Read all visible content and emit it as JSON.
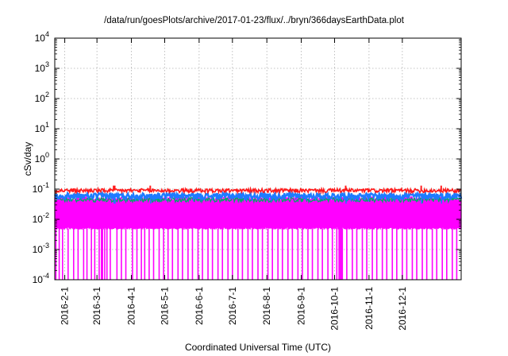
{
  "chart_data": {
    "type": "line",
    "title": "/data/run/goesPlots/archive/2017-01-23/flux/../bryn/366daysEarthData.plot",
    "xlabel": "Coordinated Universal Time (UTC)",
    "ylabel": "cSv/day",
    "yscale": "log",
    "ylim": [
      0.0001,
      10000
    ],
    "xlim": [
      "2016-01-23",
      "2017-01-23"
    ],
    "grid": true,
    "legend": "none",
    "y_ticks": [
      {
        "base": "10",
        "exp": "-4"
      },
      {
        "base": "10",
        "exp": "-3"
      },
      {
        "base": "10",
        "exp": "-2"
      },
      {
        "base": "10",
        "exp": "-1"
      },
      {
        "base": "10",
        "exp": "0"
      },
      {
        "base": "10",
        "exp": "1"
      },
      {
        "base": "10",
        "exp": "2"
      },
      {
        "base": "10",
        "exp": "3"
      },
      {
        "base": "10",
        "exp": "4"
      }
    ],
    "x_ticks": [
      {
        "date": "2016-02-01",
        "label": "2016-2-1"
      },
      {
        "date": "2016-03-01",
        "label": "2016-3-1"
      },
      {
        "date": "2016-04-01",
        "label": "2016-4-1"
      },
      {
        "date": "2016-05-01",
        "label": "2016-5-1"
      },
      {
        "date": "2016-06-01",
        "label": "2016-6-1"
      },
      {
        "date": "2016-07-01",
        "label": "2016-7-1"
      },
      {
        "date": "2016-08-01",
        "label": "2016-8-1"
      },
      {
        "date": "2016-09-01",
        "label": "2016-9-1"
      },
      {
        "date": "2016-10-01",
        "label": "2016-10-1"
      },
      {
        "date": "2016-11-01",
        "label": "2016-11-1"
      },
      {
        "date": "2016-12-01",
        "label": "2016-12-1"
      }
    ],
    "series": [
      {
        "color": "#ff00ff",
        "baseline": 0.03,
        "low": 0.005,
        "high": 0.05,
        "dropouts_to": 0.0001
      },
      {
        "color": "#00aa66",
        "baseline": 0.045
      },
      {
        "color": "#1e7bff",
        "baseline": 0.06
      },
      {
        "color": "#ff1a1a",
        "baseline": 0.09
      }
    ],
    "dropout_dates": [
      "2016-01-24",
      "2016-01-27",
      "2016-01-30",
      "2016-02-04",
      "2016-02-09",
      "2016-02-13",
      "2016-02-18",
      "2016-02-21",
      "2016-02-25",
      "2016-02-28",
      "2016-03-03",
      "2016-03-05",
      "2016-03-06",
      "2016-03-08",
      "2016-03-10",
      "2016-03-13",
      "2016-03-19",
      "2016-03-23",
      "2016-03-27",
      "2016-04-02",
      "2016-04-06",
      "2016-04-10",
      "2016-04-13",
      "2016-04-17",
      "2016-04-21",
      "2016-04-26",
      "2016-04-30",
      "2016-05-04",
      "2016-05-08",
      "2016-05-13",
      "2016-05-17",
      "2016-05-22",
      "2016-05-26",
      "2016-05-31",
      "2016-06-04",
      "2016-06-09",
      "2016-06-13",
      "2016-06-18",
      "2016-06-22",
      "2016-06-27",
      "2016-07-01",
      "2016-07-06",
      "2016-07-10",
      "2016-07-15",
      "2016-07-19",
      "2016-07-24",
      "2016-07-28",
      "2016-08-02",
      "2016-08-06",
      "2016-08-11",
      "2016-08-15",
      "2016-08-20",
      "2016-08-24",
      "2016-08-29",
      "2016-09-02",
      "2016-09-07",
      "2016-09-11",
      "2016-09-16",
      "2016-09-20",
      "2016-09-25",
      "2016-09-29",
      "2016-10-03",
      "2016-10-05",
      "2016-10-06",
      "2016-10-07",
      "2016-10-08",
      "2016-10-12",
      "2016-10-17",
      "2016-10-21",
      "2016-10-26",
      "2016-10-30",
      "2016-11-04",
      "2016-11-08",
      "2016-11-13",
      "2016-11-17",
      "2016-11-22",
      "2016-11-26",
      "2016-12-01",
      "2016-12-05",
      "2016-12-10",
      "2016-12-14",
      "2016-12-19",
      "2016-12-23",
      "2016-12-28",
      "2017-01-01",
      "2017-01-06",
      "2017-01-10",
      "2017-01-15",
      "2017-01-19"
    ],
    "spike_dates": [
      "2016-03-16",
      "2016-03-17",
      "2016-04-18",
      "2016-10-11",
      "2016-12-18",
      "2017-01-05"
    ]
  }
}
